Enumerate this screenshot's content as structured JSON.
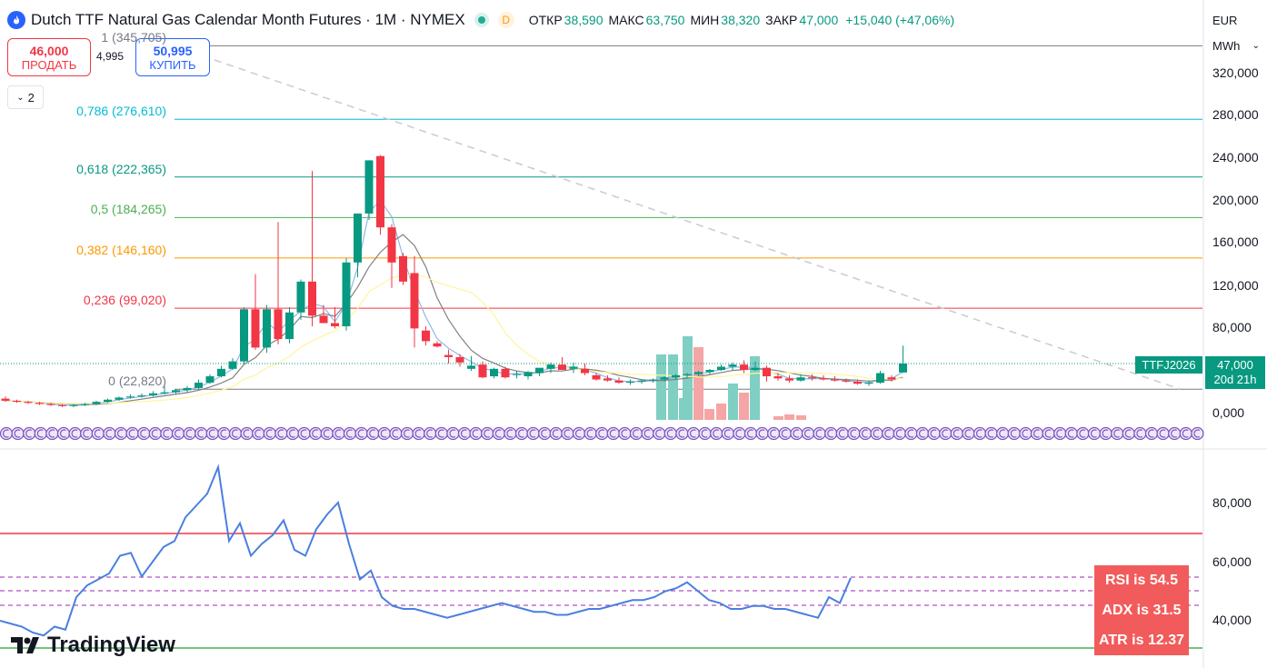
{
  "legend": {
    "title": "Dutch TTF Natural Gas Calendar Month Futures · 1M · NYMEX",
    "d_badge": "D",
    "open_label": "ОТКР",
    "open_value": "38,590",
    "high_label": "МАКС",
    "high_value": "63,750",
    "low_label": "МИН",
    "low_value": "38,320",
    "close_label": "ЗАКР",
    "close_value": "47,000",
    "change": "+15,040 (+47,06%)"
  },
  "trade": {
    "sell_price": "46,000",
    "sell_label": "ПРОДАТЬ",
    "spread": "4,995",
    "buy_price": "50,995",
    "buy_label": "КУПИТЬ"
  },
  "collapse_count": "2",
  "currency": "EUR",
  "unit": "MWh",
  "price_axis": [
    "320,000",
    "280,000",
    "240,000",
    "200,000",
    "160,000",
    "120,000",
    "80,000",
    "0,000"
  ],
  "indicator_axis": [
    "80,000",
    "60,000",
    "40,000"
  ],
  "fib_levels": [
    {
      "label": "1 (345,705)",
      "value": 345.705,
      "color": "#787b86"
    },
    {
      "label": "0,786 (276,610)",
      "value": 276.61,
      "color": "#00bcd4"
    },
    {
      "label": "0,618 (222,365)",
      "value": 222.365,
      "color": "#089981"
    },
    {
      "label": "0,5 (184,265)",
      "value": 184.265,
      "color": "#4caf50"
    },
    {
      "label": "0,382 (146,160)",
      "value": 146.16,
      "color": "#ff9800"
    },
    {
      "label": "0,236 (99,020)",
      "value": 99.02,
      "color": "#f23645"
    },
    {
      "label": "0 (22,820)",
      "value": 22.82,
      "color": "#787b86"
    }
  ],
  "price_tag": {
    "symbol": "TTFJ2026",
    "price": "47,000",
    "countdown": "20d 21h"
  },
  "badges": [
    "RSI is 54.5",
    "ADX is 31.5",
    "ATR is 12.37"
  ],
  "brand": "TradingView",
  "colors": {
    "up": "#089981",
    "down": "#f23645",
    "rsi": "#4a7fe0",
    "accent": "#2962ff"
  },
  "chart_data": [
    {
      "type": "candlestick",
      "title": "Dutch TTF Natural Gas Calendar Month Futures · 1M · NYMEX",
      "ylim": [
        0,
        360
      ],
      "ohlc": [
        [
          14,
          16,
          11,
          12
        ],
        [
          12,
          13,
          10,
          11
        ],
        [
          11,
          12,
          9,
          10
        ],
        [
          10,
          11,
          8,
          9
        ],
        [
          9,
          10,
          7,
          8
        ],
        [
          8,
          9,
          6,
          7
        ],
        [
          7,
          9,
          6,
          8
        ],
        [
          8,
          10,
          7,
          9
        ],
        [
          9,
          12,
          8,
          11
        ],
        [
          11,
          14,
          10,
          13
        ],
        [
          13,
          16,
          12,
          15
        ],
        [
          15,
          18,
          14,
          16
        ],
        [
          16,
          19,
          15,
          17
        ],
        [
          17,
          21,
          16,
          19
        ],
        [
          19,
          26,
          18,
          20
        ],
        [
          20,
          23,
          18,
          22
        ],
        [
          22,
          26,
          20,
          24
        ],
        [
          24,
          32,
          23,
          29
        ],
        [
          29,
          37,
          28,
          35
        ],
        [
          35,
          45,
          34,
          42
        ],
        [
          42,
          52,
          41,
          49
        ],
        [
          49,
          100,
          47,
          98
        ],
        [
          98,
          131,
          60,
          62
        ],
        [
          62,
          102,
          57,
          98
        ],
        [
          98,
          180,
          65,
          70
        ],
        [
          70,
          100,
          66,
          95
        ],
        [
          95,
          126,
          88,
          124
        ],
        [
          124,
          228,
          82,
          92
        ],
        [
          92,
          102,
          86,
          85
        ],
        [
          85,
          100,
          80,
          82
        ],
        [
          82,
          146,
          78,
          142
        ],
        [
          142,
          185,
          128,
          188
        ],
        [
          188,
          238,
          182,
          238
        ],
        [
          242,
          243,
          168,
          175
        ],
        [
          175,
          178,
          118,
          142
        ],
        [
          148,
          151,
          121,
          124
        ],
        [
          132,
          148,
          62,
          80
        ],
        [
          78,
          82,
          64,
          68
        ],
        [
          66,
          68,
          62,
          63
        ],
        [
          55,
          60,
          47,
          53
        ],
        [
          53,
          56,
          44,
          48
        ],
        [
          42,
          54,
          40,
          45
        ],
        [
          46,
          49,
          33,
          34
        ],
        [
          35,
          43,
          33,
          42
        ],
        [
          42,
          44,
          33,
          34
        ],
        [
          37,
          40,
          33,
          37
        ],
        [
          35,
          40,
          32,
          39
        ],
        [
          38,
          42,
          35,
          43
        ],
        [
          42,
          48,
          38,
          46
        ],
        [
          46,
          53,
          43,
          41
        ],
        [
          42,
          48,
          38,
          44
        ],
        [
          42,
          47,
          36,
          38
        ],
        [
          36,
          38,
          31,
          32
        ],
        [
          33,
          36,
          30,
          31
        ],
        [
          31,
          34,
          28,
          29
        ],
        [
          29,
          32,
          27,
          30
        ],
        [
          30,
          32,
          28,
          31
        ],
        [
          31,
          33,
          29,
          32
        ],
        [
          32,
          35,
          30,
          34
        ],
        [
          34,
          37,
          32,
          36
        ],
        [
          36,
          38,
          33,
          37
        ],
        [
          37,
          40,
          35,
          39
        ],
        [
          39,
          42,
          37,
          41
        ],
        [
          41,
          46,
          40,
          44
        ],
        [
          44,
          48,
          41,
          46
        ],
        [
          46,
          50,
          38,
          41
        ],
        [
          41,
          49,
          40,
          43
        ],
        [
          43,
          45,
          30,
          35
        ],
        [
          35,
          38,
          31,
          33
        ],
        [
          33,
          36,
          29,
          31
        ],
        [
          31,
          37,
          30,
          34
        ],
        [
          34,
          37,
          31,
          33
        ],
        [
          33,
          36,
          31,
          32
        ],
        [
          32,
          35,
          30,
          31
        ],
        [
          31,
          33,
          29,
          30
        ],
        [
          30,
          32,
          27,
          28
        ],
        [
          28,
          31,
          26,
          29
        ],
        [
          29,
          40,
          28,
          38
        ],
        [
          34,
          36,
          30,
          32
        ],
        [
          38.59,
          63.75,
          38.32,
          47
        ]
      ]
    },
    {
      "type": "line",
      "name": "RSI",
      "ylim": [
        30,
        95
      ],
      "values": [
        40,
        39,
        38,
        36,
        35,
        38,
        37,
        48,
        52,
        54,
        56,
        62,
        63,
        55,
        60,
        65,
        67,
        75,
        79,
        83,
        92,
        67,
        73,
        62,
        66,
        69,
        74,
        64,
        62,
        71,
        76,
        80,
        66,
        54,
        57,
        48,
        45,
        44,
        44,
        43,
        42,
        41,
        42,
        43,
        44,
        45,
        46,
        45,
        44,
        43,
        43,
        42,
        42,
        43,
        44,
        44,
        45,
        46,
        47,
        47,
        48,
        50,
        51,
        53,
        50,
        47,
        46,
        44,
        44,
        45,
        45,
        44,
        44,
        43,
        42,
        41,
        48,
        46,
        54.5
      ]
    }
  ]
}
